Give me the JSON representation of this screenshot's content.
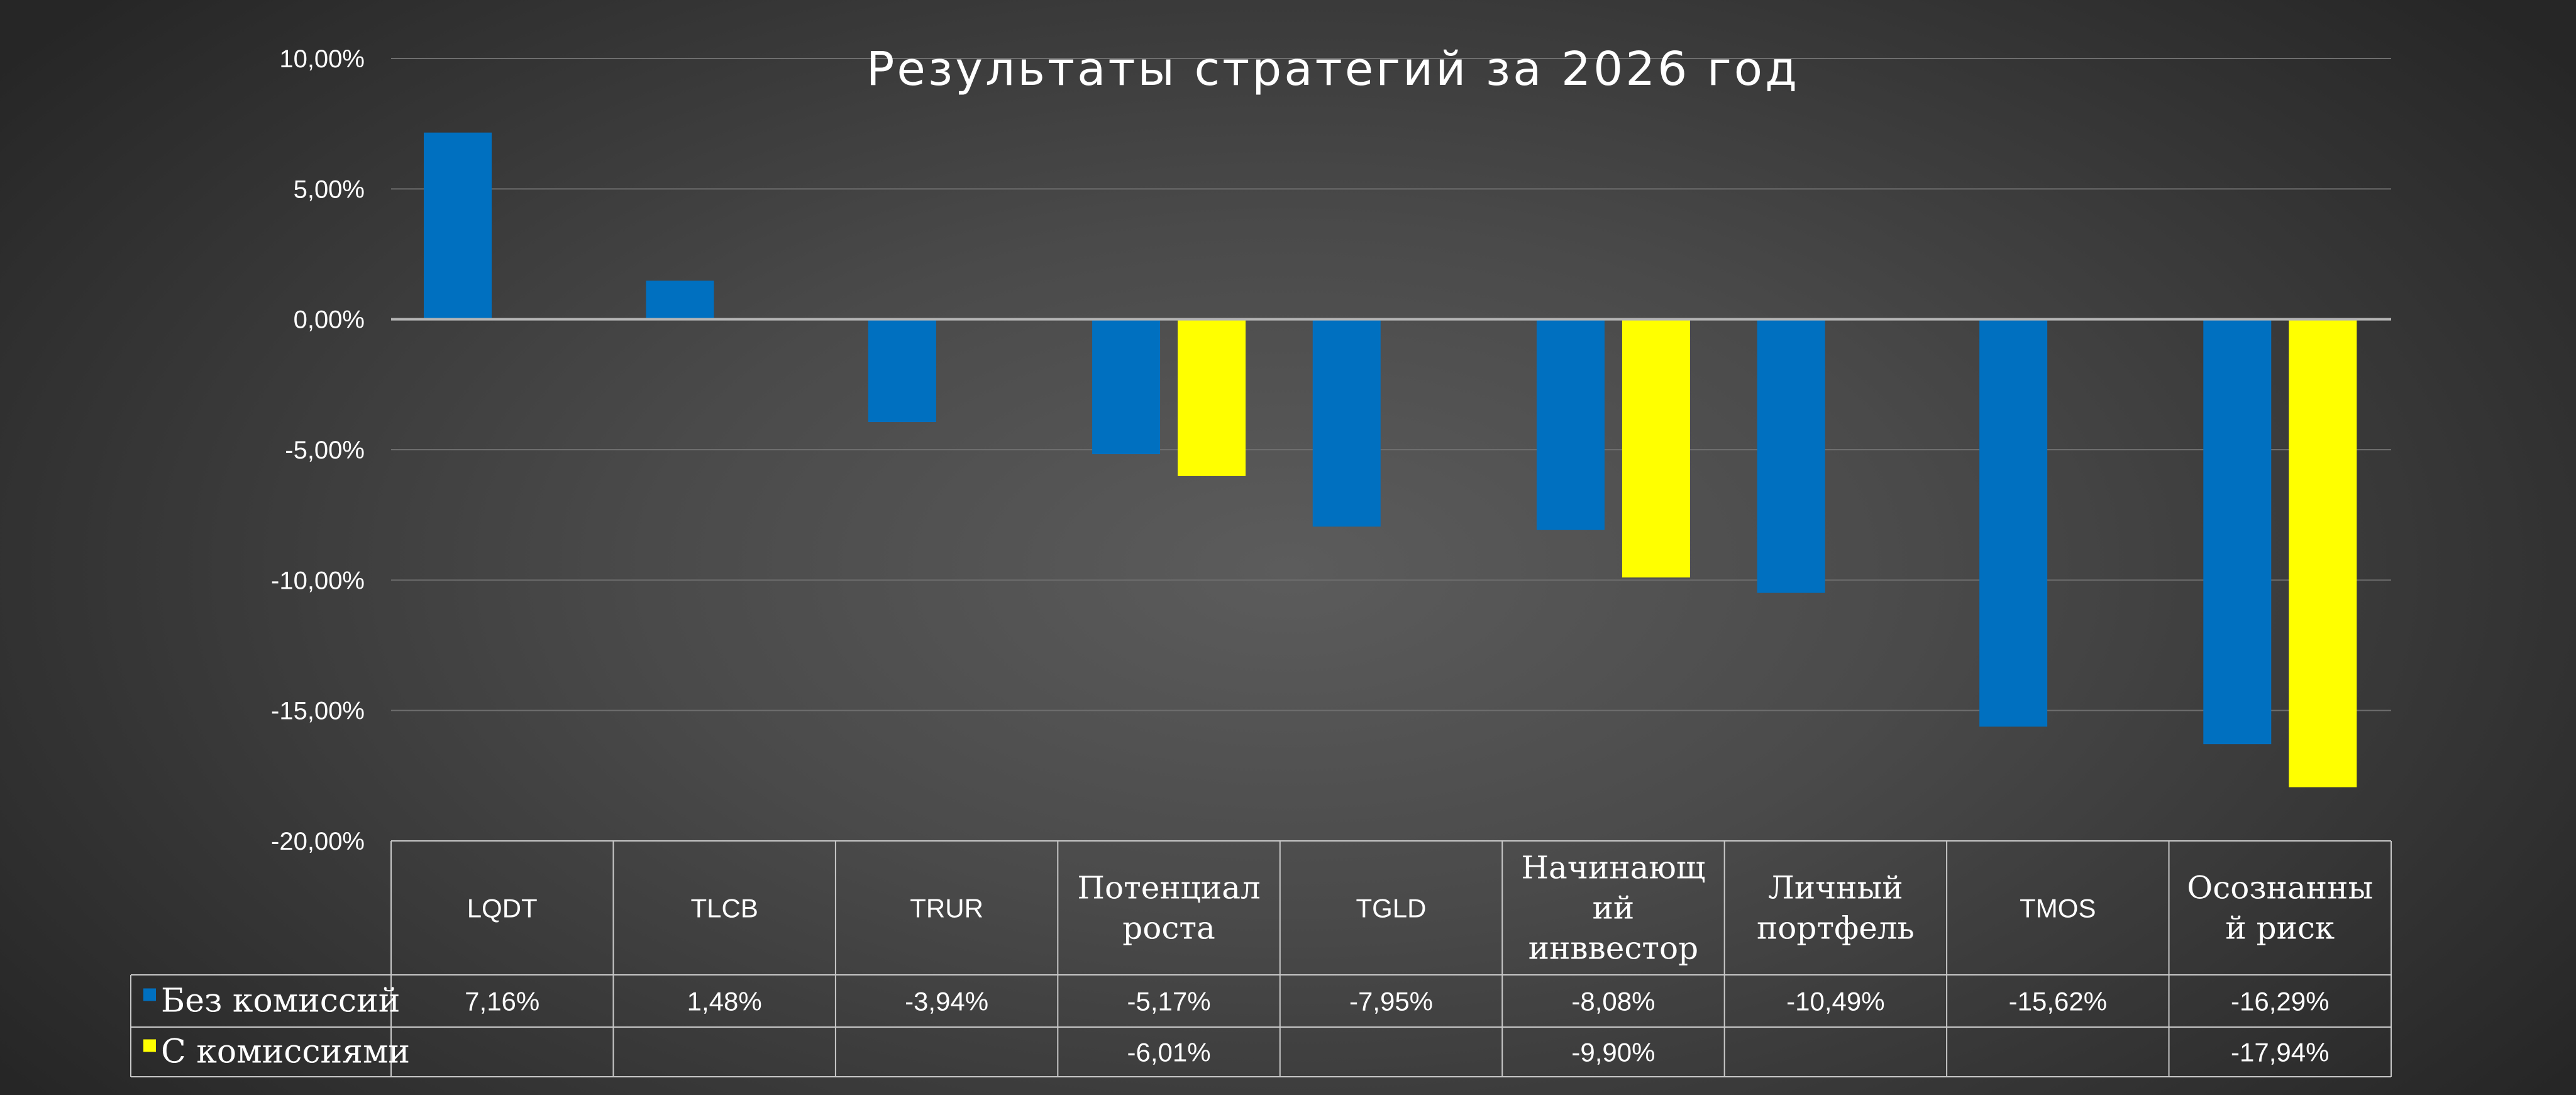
{
  "chart_data": {
    "type": "bar",
    "title": "Результаты стратегий за 2026 год",
    "xlabel": "",
    "ylabel": "",
    "ylim": [
      -20,
      10
    ],
    "y_ticks": [
      10,
      5,
      0,
      -5,
      -10,
      -15,
      -20
    ],
    "y_tick_labels": [
      "10,00%",
      "5,00%",
      "0,00%",
      "-5,00%",
      "-10,00%",
      "-15,00%",
      "-20,00%"
    ],
    "grid": true,
    "legend": "data-table-bottom",
    "categories": [
      "LQDT",
      "TLCB",
      "TRUR",
      "Потенциал роста",
      "TGLD",
      "Начинающий инввестор",
      "Личный портфель",
      "TMOS",
      "Осознанный риск"
    ],
    "category_lines": [
      [
        "LQDT"
      ],
      [
        "TLCB"
      ],
      [
        "TRUR"
      ],
      [
        "Потенциал",
        "роста"
      ],
      [
        "TGLD"
      ],
      [
        "Начинающ",
        "ий",
        "инввестор"
      ],
      [
        "Личный",
        "портфель"
      ],
      [
        "TMOS"
      ],
      [
        "Осознанны",
        "й риск"
      ]
    ],
    "category_style": [
      "sans",
      "sans",
      "sans",
      "serif",
      "sans",
      "serif",
      "serif",
      "sans",
      "serif"
    ],
    "series": [
      {
        "name": "Без комиссий",
        "color": "#0070C0",
        "values": [
          7.16,
          1.48,
          -3.94,
          -5.17,
          -7.95,
          -8.08,
          -10.49,
          -15.62,
          -16.29
        ],
        "labels": [
          "7,16%",
          "1,48%",
          "-3,94%",
          "-5,17%",
          "-7,95%",
          "-8,08%",
          "-10,49%",
          "-15,62%",
          "-16,29%"
        ]
      },
      {
        "name": "С комиссиями",
        "color": "#FFFF00",
        "values": [
          null,
          null,
          null,
          -6.01,
          null,
          -9.9,
          null,
          null,
          -17.94
        ],
        "labels": [
          "",
          "",
          "",
          "-6,01%",
          "",
          "-9,90%",
          "",
          "",
          "-17,94%"
        ]
      }
    ]
  },
  "colors": {
    "grid": "#6e6e6e",
    "zero_line": "#b4b4b4",
    "table_border": "#c8c8c8"
  }
}
